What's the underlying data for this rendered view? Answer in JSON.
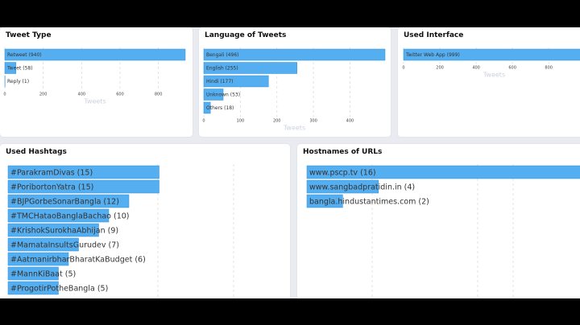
{
  "chart_data": [
    {
      "id": "tweet-type",
      "type": "bar",
      "orientation": "horizontal",
      "title": "Tweet Type",
      "xlabel": "Tweets",
      "xlim": [
        0,
        940
      ],
      "xticks": [
        0,
        200,
        400,
        600,
        800
      ],
      "categories": [
        "Retweet",
        "Tweet",
        "Reply"
      ],
      "values": [
        940,
        58,
        1
      ],
      "grid": true
    },
    {
      "id": "language",
      "type": "bar",
      "orientation": "horizontal",
      "title": "Language of Tweets",
      "xlabel": "Tweets",
      "xlim": [
        0,
        496
      ],
      "xticks": [
        0,
        100,
        200,
        300,
        400
      ],
      "categories": [
        "Bengali",
        "English",
        "Hindi",
        "Unknown",
        "Others"
      ],
      "values": [
        496,
        255,
        177,
        53,
        18
      ],
      "grid": true
    },
    {
      "id": "interface",
      "type": "bar",
      "orientation": "horizontal",
      "title": "Used Interface",
      "xlabel": "Tweets",
      "xlim": [
        0,
        999
      ],
      "xticks": [
        0,
        200,
        400,
        600,
        800
      ],
      "categories": [
        "Twitter Web App"
      ],
      "values": [
        999
      ],
      "grid": true
    },
    {
      "id": "hashtags",
      "type": "bar",
      "orientation": "horizontal",
      "title": "Used Hashtags",
      "xlim": [
        0,
        16
      ],
      "categories": [
        "#ParakramDivas",
        "#PoribortonYatra",
        "#BJPGorbeSonarBangla",
        "#TMCHataoBanglaBachao",
        "#KrishokSurokhaAbhijan",
        "#MamataInsultsGurudev",
        "#AatmanirbharBharatKaBudget",
        "#MannKiBaat",
        "#ProgotirPotheBangla"
      ],
      "values": [
        15,
        15,
        12,
        10,
        9,
        7,
        6,
        5,
        5
      ],
      "grid": true
    },
    {
      "id": "hostnames",
      "type": "bar",
      "orientation": "horizontal",
      "title": "Hostnames of URLs",
      "xlim": [
        0,
        16
      ],
      "categories": [
        "www.pscp.tv",
        "www.sangbadpratidin.in",
        "bangla.hindustantimes.com"
      ],
      "values": [
        16,
        4,
        2
      ],
      "grid": true
    }
  ]
}
